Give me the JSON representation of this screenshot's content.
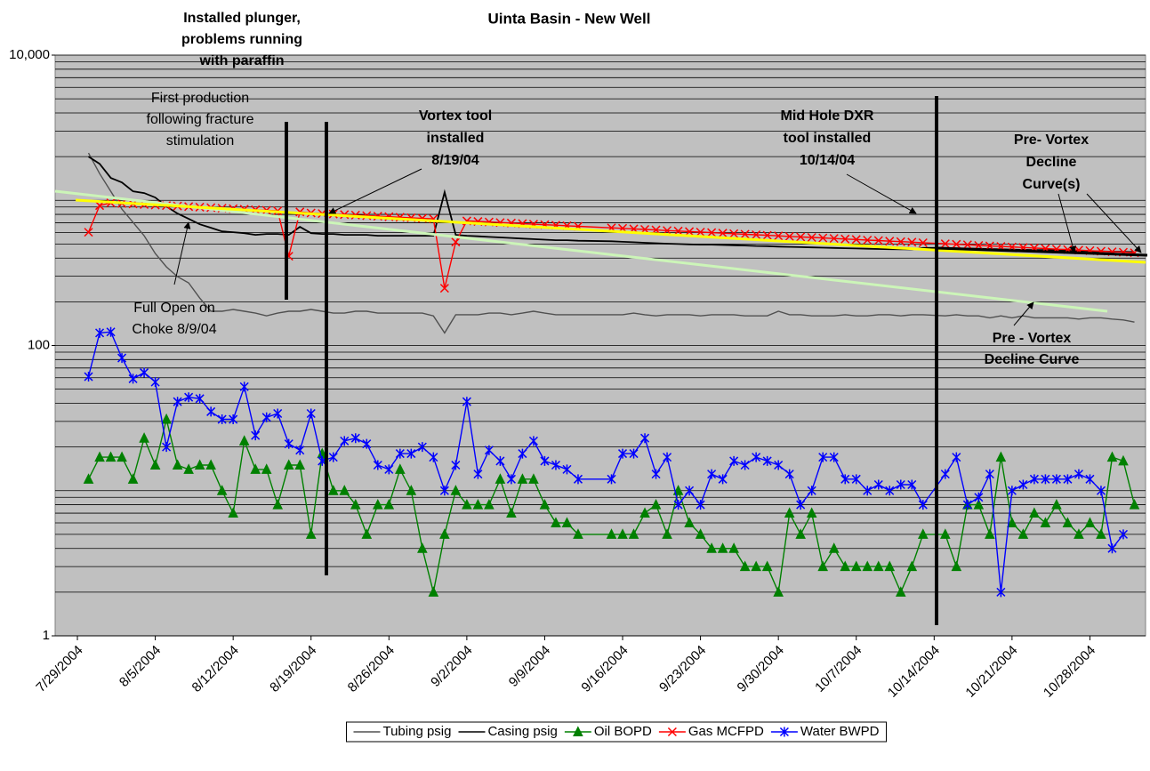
{
  "chart_data": {
    "type": "line",
    "title": "Uinta Basin - New Well",
    "xlim": [
      "7/27/2004",
      "11/2/2004"
    ],
    "xticks": [
      "7/29/2004",
      "8/5/2004",
      "8/12/2004",
      "8/19/2004",
      "8/26/2004",
      "9/2/2004",
      "9/9/2004",
      "9/16/2004",
      "9/23/2004",
      "9/30/2004",
      "10/7/2004",
      "10/14/2004",
      "10/21/2004",
      "10/28/2004"
    ],
    "ylim": [
      1,
      10000
    ],
    "yticks": [
      1,
      100,
      {
        "value": 10000,
        "label": "10,000"
      }
    ],
    "log_scale": true,
    "grid": true,
    "legend": "bottom",
    "x": [
      "7/30/2004",
      "7/31/2004",
      "8/1/2004",
      "8/2/2004",
      "8/3/2004",
      "8/4/2004",
      "8/5/2004",
      "8/6/2004",
      "8/7/2004",
      "8/8/2004",
      "8/9/2004",
      "8/10/2004",
      "8/11/2004",
      "8/12/2004",
      "8/13/2004",
      "8/14/2004",
      "8/15/2004",
      "8/16/2004",
      "8/17/2004",
      "8/18/2004",
      "8/19/2004",
      "8/20/2004",
      "8/21/2004",
      "8/22/2004",
      "8/23/2004",
      "8/24/2004",
      "8/25/2004",
      "8/26/2004",
      "8/27/2004",
      "8/28/2004",
      "8/29/2004",
      "8/30/2004",
      "8/31/2004",
      "9/1/2004",
      "9/2/2004",
      "9/3/2004",
      "9/4/2004",
      "9/5/2004",
      "9/6/2004",
      "9/7/2004",
      "9/8/2004",
      "9/9/2004",
      "9/10/2004",
      "9/11/2004",
      "9/12/2004",
      "9/15/2004",
      "9/16/2004",
      "9/17/2004",
      "9/18/2004",
      "9/19/2004",
      "9/20/2004",
      "9/21/2004",
      "9/22/2004",
      "9/23/2004",
      "9/24/2004",
      "9/25/2004",
      "9/26/2004",
      "9/27/2004",
      "9/28/2004",
      "9/29/2004",
      "9/30/2004",
      "10/1/2004",
      "10/2/2004",
      "10/3/2004",
      "10/4/2004",
      "10/5/2004",
      "10/6/2004",
      "10/7/2004",
      "10/8/2004",
      "10/9/2004",
      "10/10/2004",
      "10/11/2004",
      "10/12/2004",
      "10/13/2004",
      "10/15/2004",
      "10/16/2004",
      "10/17/2004",
      "10/18/2004",
      "10/19/2004",
      "10/20/2004",
      "10/21/2004",
      "10/22/2004",
      "10/23/2004",
      "10/24/2004",
      "10/25/2004",
      "10/26/2004",
      "10/27/2004",
      "10/28/2004",
      "10/29/2004",
      "10/30/2004",
      "10/31/2004",
      "11/1/2004"
    ],
    "series": [
      {
        "name": "Tubing psig",
        "color": "#505050",
        "marker": "none",
        "values": [
          2115,
          1528,
          1153,
          869,
          704,
          570,
          430,
          348,
          298,
          270,
          212,
          172,
          172,
          177,
          172,
          167,
          160,
          167,
          172,
          172,
          177,
          172,
          167,
          167,
          172,
          172,
          167,
          167,
          167,
          167,
          167,
          160,
          122,
          163,
          163,
          163,
          167,
          167,
          163,
          167,
          172,
          167,
          163,
          163,
          163,
          163,
          163,
          167,
          163,
          160,
          163,
          163,
          163,
          160,
          163,
          163,
          163,
          160,
          160,
          160,
          172,
          163,
          163,
          160,
          160,
          160,
          163,
          160,
          160,
          163,
          163,
          160,
          163,
          163,
          160,
          163,
          160,
          160,
          155,
          160,
          155,
          160,
          155,
          155,
          155,
          155,
          152,
          155,
          155,
          152,
          150,
          145
        ]
      },
      {
        "name": "Casing psig",
        "color": "#000000",
        "marker": "none",
        "values": [
          2000,
          1785,
          1425,
          1327,
          1153,
          1122,
          1045,
          907,
          811,
          745,
          684,
          647,
          611,
          603,
          594,
          578,
          586,
          586,
          578,
          656,
          594,
          586,
          586,
          578,
          578,
          578,
          570,
          570,
          570,
          570,
          570,
          570,
          1137,
          578,
          570,
          565,
          560,
          555,
          550,
          545,
          540,
          536,
          531,
          531,
          527,
          522,
          518,
          514,
          510,
          506,
          503,
          500,
          497,
          495,
          495,
          492,
          490,
          488,
          485,
          483,
          480,
          478,
          476,
          474,
          472,
          470,
          468,
          466,
          464,
          462,
          461,
          460,
          459,
          470,
          470,
          468,
          466,
          464,
          462,
          460,
          458,
          456,
          455,
          454,
          452,
          450,
          448,
          446,
          445,
          443,
          442,
          440
        ]
      },
      {
        "name": "Oil BOPD",
        "color": "#008000",
        "marker": "triangle",
        "values": [
          12,
          17,
          17,
          17,
          12,
          23,
          15,
          31,
          15,
          14,
          15,
          15,
          10,
          7,
          22,
          14,
          14,
          8,
          15,
          15,
          5,
          18,
          10,
          10,
          8,
          5,
          8,
          8,
          14,
          10,
          4,
          2,
          5,
          10,
          8,
          8,
          8,
          12,
          7,
          12,
          12,
          8,
          6,
          6,
          5,
          5,
          5,
          5,
          7,
          8,
          5,
          10,
          6,
          5,
          4,
          4,
          4,
          3,
          3,
          3,
          2,
          7,
          5,
          7,
          3,
          4,
          3,
          3,
          3,
          3,
          3,
          2,
          3,
          5,
          5,
          3,
          8,
          8,
          5,
          17,
          6,
          5,
          7,
          6,
          8,
          6,
          5,
          6,
          5,
          17,
          16,
          8
        ]
      },
      {
        "name": "Gas MCFPD",
        "color": "#ff0000",
        "marker": "x",
        "values": [
          603,
          920,
          960,
          952,
          944,
          936,
          928,
          920,
          913,
          905,
          897,
          890,
          882,
          875,
          868,
          860,
          853,
          846,
          412,
          832,
          818,
          811,
          804,
          797,
          791,
          784,
          777,
          771,
          764,
          758,
          751,
          745,
          248,
          516,
          721,
          715,
          709,
          703,
          697,
          691,
          685,
          679,
          674,
          668,
          662,
          646,
          641,
          635,
          630,
          625,
          619,
          614,
          609,
          604,
          599,
          594,
          589,
          584,
          579,
          574,
          569,
          564,
          560,
          555,
          550,
          546,
          541,
          537,
          532,
          528,
          523,
          519,
          515,
          510,
          502,
          498,
          494,
          489,
          485,
          481,
          477,
          473,
          469,
          465,
          461,
          458,
          454,
          450,
          446,
          442,
          439,
          435
        ]
      },
      {
        "name": "Water BWPD",
        "color": "#0000ff",
        "marker": "star",
        "values": [
          61,
          122,
          124,
          82,
          59,
          65,
          56,
          20,
          41,
          44,
          43,
          35,
          31,
          31,
          52,
          24,
          32,
          34,
          21,
          19,
          34,
          16,
          17,
          22,
          23,
          21,
          15,
          14,
          18,
          18,
          20,
          17,
          10,
          15,
          41,
          13,
          19,
          16,
          12,
          18,
          22,
          16,
          15,
          14,
          12,
          12,
          18,
          18,
          23,
          13,
          17,
          8,
          10,
          8,
          13,
          12,
          16,
          15,
          17,
          16,
          15,
          13,
          8,
          10,
          17,
          17,
          12,
          12,
          10,
          11,
          10,
          11,
          11,
          8,
          13,
          17,
          8,
          9,
          13,
          2,
          10,
          11,
          12,
          12,
          12,
          12,
          13,
          12,
          10,
          4,
          5,
          null
        ]
      }
    ],
    "annotations": [
      [
        "Installed plunger,",
        "problems running",
        "with paraffin"
      ],
      [
        "First production",
        "following fracture",
        "stimulation"
      ],
      [
        "Vortex tool",
        "installed",
        "8/19/04"
      ],
      [
        "Mid Hole DXR",
        "tool installed",
        "10/14/04"
      ],
      [
        "Pre- Vortex",
        "Decline",
        "Curve(s)"
      ],
      [
        "Full Open on",
        "Choke 8/9/04"
      ],
      [
        "Pre - Vortex",
        "Decline Curve"
      ]
    ]
  }
}
